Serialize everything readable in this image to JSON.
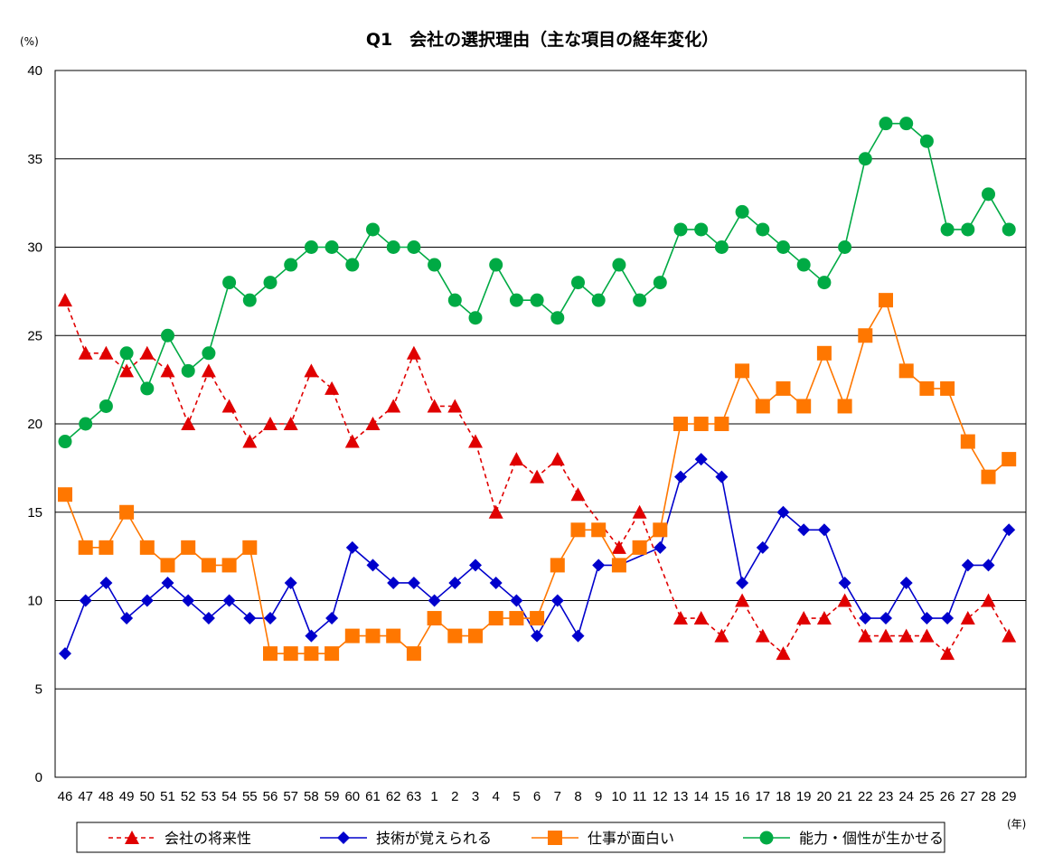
{
  "chart_data": {
    "type": "line",
    "title": "Q1　会社の選択理由（主な項目の経年変化）",
    "ylabel": "(%)",
    "xlabel": "(年)",
    "ylim": [
      0,
      40
    ],
    "yticks": [
      0,
      5,
      10,
      15,
      20,
      25,
      30,
      35,
      40
    ],
    "grid": true,
    "legend_position": "bottom",
    "categories": [
      "46",
      "47",
      "48",
      "49",
      "50",
      "51",
      "52",
      "53",
      "54",
      "55",
      "56",
      "57",
      "58",
      "59",
      "60",
      "61",
      "62",
      "63",
      "1",
      "2",
      "3",
      "4",
      "5",
      "6",
      "7",
      "8",
      "9",
      "10",
      "11",
      "12",
      "13",
      "14",
      "15",
      "16",
      "17",
      "18",
      "19",
      "20",
      "21",
      "22",
      "23",
      "24",
      "25",
      "26",
      "27",
      "28",
      "29"
    ],
    "series": [
      {
        "name": "会社の将来性",
        "color": "#e00000",
        "marker": "triangle",
        "line_style": "dashed",
        "values": [
          27,
          24,
          24,
          23,
          24,
          23,
          20,
          23,
          21,
          19,
          20,
          20,
          23,
          22,
          19,
          20,
          21,
          24,
          21,
          21,
          19,
          15,
          18,
          17,
          18,
          16,
          null,
          13,
          15,
          null,
          9,
          9,
          8,
          10,
          8,
          7,
          9,
          9,
          10,
          8,
          8,
          8,
          8,
          7,
          9,
          10,
          8
        ]
      },
      {
        "name": "技術が覚えられる",
        "color": "#0000cc",
        "marker": "diamond",
        "line_style": "solid",
        "values": [
          7,
          10,
          11,
          9,
          10,
          11,
          10,
          9,
          10,
          9,
          9,
          11,
          8,
          9,
          13,
          12,
          11,
          11,
          10,
          11,
          12,
          11,
          10,
          8,
          10,
          8,
          12,
          12,
          null,
          13,
          17,
          18,
          17,
          11,
          13,
          15,
          14,
          14,
          11,
          9,
          9,
          11,
          9,
          9,
          12,
          12,
          14
        ]
      },
      {
        "name": "仕事が面白い",
        "color": "#ff7700",
        "marker": "square",
        "line_style": "solid",
        "values": [
          16,
          13,
          13,
          15,
          13,
          12,
          13,
          12,
          12,
          13,
          7,
          7,
          7,
          7,
          8,
          8,
          8,
          7,
          9,
          8,
          8,
          9,
          9,
          9,
          12,
          14,
          14,
          12,
          13,
          14,
          20,
          20,
          20,
          23,
          21,
          22,
          21,
          24,
          21,
          25,
          27,
          23,
          22,
          22,
          19,
          17,
          18
        ]
      },
      {
        "name": "能力・個性が生かせる",
        "color": "#00aa44",
        "marker": "circle",
        "line_style": "solid",
        "values": [
          19,
          20,
          21,
          24,
          22,
          25,
          23,
          24,
          28,
          27,
          28,
          29,
          30,
          30,
          29,
          31,
          30,
          30,
          29,
          27,
          26,
          29,
          27,
          27,
          26,
          28,
          27,
          29,
          27,
          28,
          31,
          31,
          30,
          32,
          31,
          30,
          29,
          28,
          30,
          35,
          37,
          37,
          36,
          31,
          31,
          33,
          31
        ]
      }
    ]
  }
}
